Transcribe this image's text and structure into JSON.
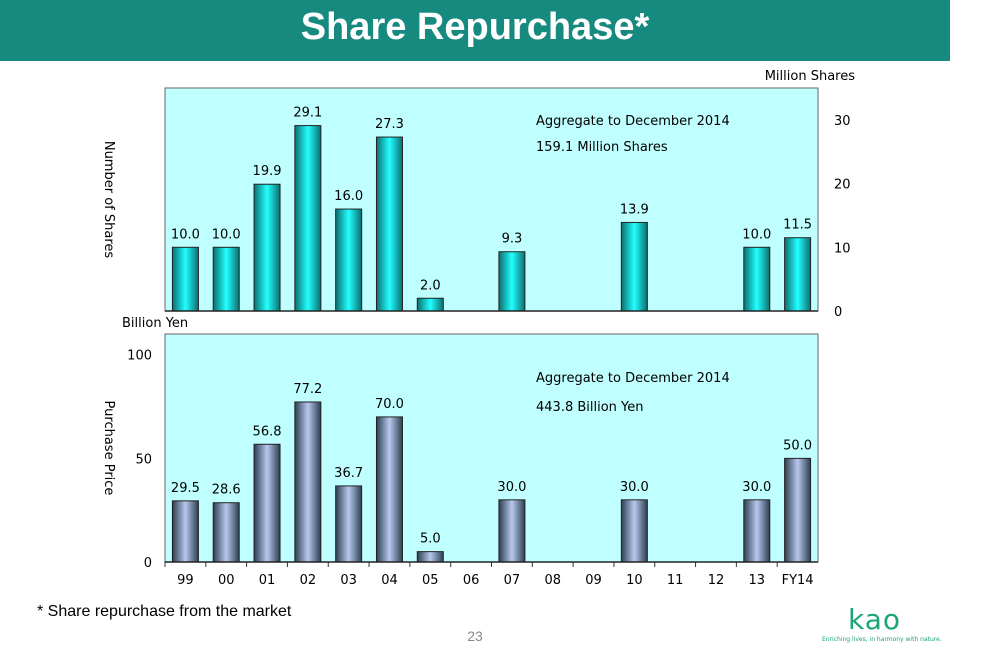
{
  "header": {
    "title": "Share Repurchase*"
  },
  "footnote": "* Share repurchase from the market",
  "page_number": "23",
  "logo": {
    "text": "Kao",
    "tagline": "Enriching lives, in harmony with nature."
  },
  "colors": {
    "header": "#178a80",
    "plot_bg": "#c0ffff",
    "shares_bar": "#19d9d9",
    "price_bar": "#b2c0e6",
    "logo": "#1aa57a"
  },
  "chart_data": [
    {
      "type": "bar",
      "ylabel": "Number of Shares",
      "unit_label": "Million Shares",
      "ylim": [
        0,
        35
      ],
      "yticks": [
        0,
        10,
        20,
        30
      ],
      "y_axis_side": "right",
      "categories": [
        "99",
        "00",
        "01",
        "02",
        "03",
        "04",
        "05",
        "06",
        "07",
        "08",
        "09",
        "10",
        "11",
        "12",
        "13",
        "FY14"
      ],
      "values": [
        10.0,
        10.0,
        19.9,
        29.1,
        16.0,
        27.3,
        2.0,
        null,
        9.3,
        null,
        null,
        13.9,
        null,
        null,
        10.0,
        11.5
      ],
      "labels": [
        "10.0",
        "10.0",
        "19.9",
        "29.1",
        "16.0",
        "27.3",
        "2.0",
        "",
        "9.3",
        "",
        "",
        "13.9",
        "",
        "",
        "10.0",
        "11.5"
      ],
      "annotation": [
        "Aggregate to  December 2014",
        "159.1  Million Shares"
      ]
    },
    {
      "type": "bar",
      "ylabel": "Purchase Price",
      "unit_label": "Billion Yen",
      "ylim": [
        0,
        110
      ],
      "yticks": [
        0,
        50,
        100
      ],
      "y_axis_side": "left",
      "categories": [
        "99",
        "00",
        "01",
        "02",
        "03",
        "04",
        "05",
        "06",
        "07",
        "08",
        "09",
        "10",
        "11",
        "12",
        "13",
        "FY14"
      ],
      "values": [
        29.5,
        28.6,
        56.8,
        77.2,
        36.7,
        70.0,
        5.0,
        null,
        30.0,
        null,
        null,
        30.0,
        null,
        null,
        30.0,
        50.0
      ],
      "labels": [
        "29.5",
        "28.6",
        "56.8",
        "77.2",
        "36.7",
        "70.0",
        "5.0",
        "",
        "30.0",
        "",
        "",
        "30.0",
        "",
        "",
        "30.0",
        "50.0"
      ],
      "annotation": [
        "Aggregate to  December 2014",
        "443.8 Billion Yen"
      ]
    }
  ]
}
